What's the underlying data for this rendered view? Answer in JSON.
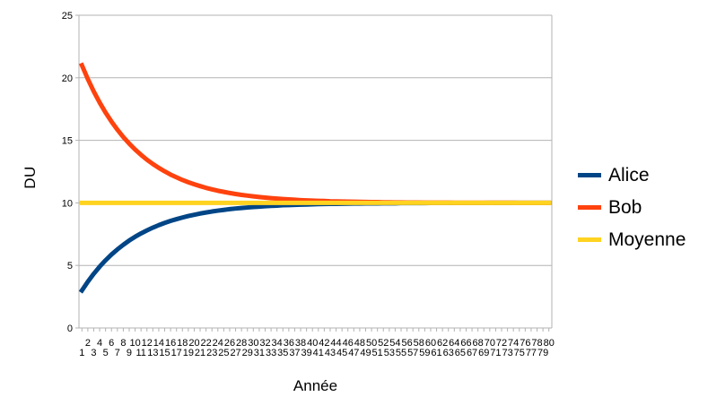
{
  "chart_data": {
    "type": "line",
    "title": "",
    "xlabel": "Année",
    "ylabel": "DU",
    "ylim": [
      0,
      25
    ],
    "yticks": [
      0,
      5,
      10,
      15,
      20,
      25
    ],
    "grid": true,
    "grid_color": "#B3B3B3",
    "axis_color": "#B3B3B3",
    "text_color": "#000000",
    "legend_position": "right",
    "x_label_layout": "staggered-two-rows-even-top-odd-bottom",
    "x": [
      1,
      2,
      3,
      4,
      5,
      6,
      7,
      8,
      9,
      10,
      11,
      12,
      13,
      14,
      15,
      16,
      17,
      18,
      19,
      20,
      21,
      22,
      23,
      24,
      25,
      26,
      27,
      28,
      29,
      30,
      31,
      32,
      33,
      34,
      35,
      36,
      37,
      38,
      39,
      40,
      41,
      42,
      43,
      44,
      45,
      46,
      47,
      48,
      49,
      50,
      51,
      52,
      53,
      54,
      55,
      56,
      57,
      58,
      59,
      60,
      61,
      62,
      63,
      64,
      65,
      66,
      67,
      68,
      69,
      70,
      71,
      72,
      73,
      74,
      75,
      76,
      77,
      78,
      79,
      80
    ],
    "series": [
      {
        "name": "Alice",
        "color": "#004586",
        "values": [
          3.0,
          3.7,
          4.33,
          4.9,
          5.41,
          5.87,
          6.28,
          6.65,
          6.99,
          7.29,
          7.56,
          7.8,
          8.02,
          8.22,
          8.4,
          8.56,
          8.7,
          8.83,
          8.95,
          9.05,
          9.15,
          9.23,
          9.31,
          9.38,
          9.44,
          9.5,
          9.55,
          9.59,
          9.63,
          9.67,
          9.7,
          9.73,
          9.76,
          9.78,
          9.81,
          9.82,
          9.84,
          9.86,
          9.87,
          9.89,
          9.9,
          9.91,
          9.92,
          9.92,
          9.93,
          9.94,
          9.95,
          9.95,
          9.96,
          9.96,
          9.96,
          9.97,
          9.97,
          9.97,
          9.98,
          9.98,
          9.98,
          9.98,
          9.98,
          9.99,
          9.99,
          9.99,
          9.99,
          9.99,
          9.99,
          9.99,
          9.99,
          9.99,
          9.99,
          10.0,
          10.0,
          10.0,
          10.0,
          10.0,
          10.0,
          10.0,
          10.0,
          10.0,
          10.0,
          10.0
        ]
      },
      {
        "name": "Bob",
        "color": "#FF420E",
        "values": [
          21.0,
          19.9,
          18.91,
          18.02,
          17.22,
          16.5,
          15.85,
          15.26,
          14.74,
          14.26,
          13.84,
          13.45,
          13.11,
          12.8,
          12.52,
          12.26,
          12.04,
          11.83,
          11.65,
          11.49,
          11.34,
          11.2,
          11.08,
          10.97,
          10.88,
          10.79,
          10.71,
          10.64,
          10.58,
          10.52,
          10.47,
          10.42,
          10.38,
          10.34,
          10.31,
          10.28,
          10.25,
          10.22,
          10.2,
          10.18,
          10.16,
          10.15,
          10.13,
          10.12,
          10.11,
          10.1,
          10.09,
          10.08,
          10.07,
          10.06,
          10.06,
          10.05,
          10.05,
          10.04,
          10.04,
          10.03,
          10.03,
          10.03,
          10.02,
          10.02,
          10.02,
          10.02,
          10.02,
          10.01,
          10.01,
          10.01,
          10.01,
          10.01,
          10.01,
          10.01,
          10.01,
          10.01,
          10.01,
          10.01,
          10.0,
          10.0,
          10.0,
          10.0,
          10.0,
          10.0
        ]
      },
      {
        "name": "Moyenne",
        "color": "#FFD320",
        "constant": 10
      }
    ]
  }
}
